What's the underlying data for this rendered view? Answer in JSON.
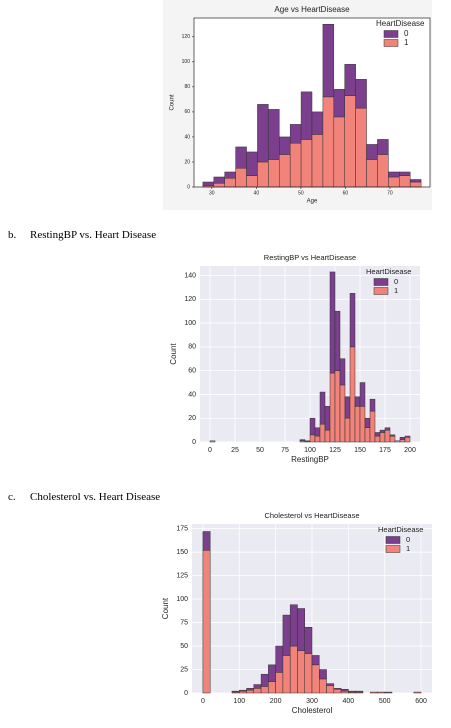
{
  "chart_data": [
    {
      "type": "histogram",
      "title": "Age vs HeartDisease",
      "x_label": "Age",
      "y_label": "Count",
      "legend_title": "HeartDisease",
      "legend": "upper right",
      "grid": false,
      "bins": [
        28,
        30.45,
        32.9,
        35.35,
        37.8,
        40.25,
        42.7,
        45.15,
        47.6,
        50.05,
        52.5,
        54.95,
        57.4,
        59.85,
        62.3,
        64.75,
        67.2,
        69.65,
        72.1,
        74.55,
        77
      ],
      "series": [
        {
          "name": "0",
          "color": "#7b3f8e",
          "values": [
            3,
            5,
            5,
            17,
            19,
            46,
            40,
            14,
            15,
            38,
            18,
            58,
            22,
            25,
            23,
            12,
            12,
            4,
            3,
            2
          ]
        },
        {
          "name": "1",
          "color": "#f2837b",
          "values": [
            1,
            3,
            7,
            15,
            9,
            20,
            22,
            26,
            35,
            38,
            42,
            72,
            56,
            73,
            63,
            22,
            26,
            8,
            9,
            4
          ]
        }
      ],
      "xlim": [
        26,
        79
      ],
      "ylim": [
        0,
        135
      ],
      "xticks": [
        30,
        40,
        50,
        60,
        70
      ],
      "yticks": [
        0,
        20,
        40,
        60,
        80,
        100,
        120
      ]
    },
    {
      "type": "histogram",
      "title": "RestingBP vs HeartDisease",
      "x_label": "RestingBP",
      "y_label": "Count",
      "legend_title": "HeartDisease",
      "legend": "upper right",
      "grid": true,
      "bins": [
        0,
        5,
        10,
        15,
        20,
        25,
        30,
        35,
        40,
        45,
        50,
        55,
        60,
        65,
        70,
        75,
        80,
        85,
        90,
        95,
        100,
        105,
        110,
        115,
        120,
        125,
        130,
        135,
        140,
        145,
        150,
        155,
        160,
        165,
        170,
        175,
        180,
        185,
        190,
        195,
        200
      ],
      "series": [
        {
          "name": "0",
          "color": "#7b3f8e",
          "values": [
            0,
            0,
            0,
            0,
            0,
            0,
            0,
            0,
            0,
            0,
            0,
            0,
            0,
            0,
            0,
            0,
            0,
            0,
            1,
            1,
            14,
            7,
            27,
            20,
            85,
            50,
            22,
            18,
            45,
            8,
            20,
            8,
            10,
            3,
            2,
            2,
            1,
            0,
            2,
            1
          ]
        },
        {
          "name": "1",
          "color": "#f2837b",
          "values": [
            1,
            0,
            0,
            0,
            0,
            0,
            0,
            0,
            0,
            0,
            0,
            0,
            0,
            0,
            0,
            0,
            0,
            0,
            1,
            0,
            6,
            5,
            15,
            10,
            58,
            60,
            48,
            20,
            80,
            30,
            30,
            12,
            26,
            5,
            8,
            10,
            5,
            1,
            2,
            4
          ]
        }
      ],
      "xlim": [
        -10,
        210
      ],
      "ylim": [
        0,
        148
      ],
      "xticks": [
        0,
        25,
        50,
        75,
        100,
        125,
        150,
        175,
        200
      ],
      "yticks": [
        0,
        20,
        40,
        60,
        80,
        100,
        120,
        140
      ]
    },
    {
      "type": "histogram",
      "title": "Cholesterol vs HeartDisease",
      "x_label": "Cholesterol",
      "y_label": "Count",
      "legend_title": "HeartDisease",
      "legend": "upper right",
      "grid": true,
      "bins": [
        0,
        20,
        40,
        60,
        80,
        100,
        120,
        140,
        160,
        180,
        200,
        220,
        240,
        260,
        280,
        300,
        320,
        340,
        360,
        380,
        400,
        420,
        440,
        460,
        480,
        500,
        520,
        540,
        560,
        580,
        600
      ],
      "series": [
        {
          "name": "0",
          "color": "#7b3f8e",
          "values": [
            20,
            0,
            0,
            0,
            1,
            1,
            2,
            4,
            13,
            18,
            28,
            43,
            44,
            45,
            28,
            10,
            10,
            2,
            1,
            2,
            1,
            1,
            0,
            0,
            0,
            1,
            0,
            0,
            0,
            0
          ]
        },
        {
          "name": "1",
          "color": "#f2837b",
          "values": [
            152,
            0,
            0,
            0,
            1,
            2,
            3,
            5,
            7,
            12,
            22,
            40,
            50,
            45,
            42,
            30,
            15,
            8,
            4,
            2,
            1,
            1,
            0,
            1,
            1,
            0,
            0,
            0,
            0,
            1
          ]
        }
      ],
      "xlim": [
        -30,
        630
      ],
      "ylim": [
        0,
        180
      ],
      "xticks": [
        0,
        100,
        200,
        300,
        400,
        500,
        600
      ],
      "yticks": [
        0,
        25,
        50,
        75,
        100,
        125,
        150,
        175
      ]
    }
  ],
  "captions": [
    {
      "letter": "b.",
      "text": "RestingBP vs. Heart Disease"
    },
    {
      "letter": "c.",
      "text": "Cholesterol vs. Heart Disease"
    }
  ]
}
